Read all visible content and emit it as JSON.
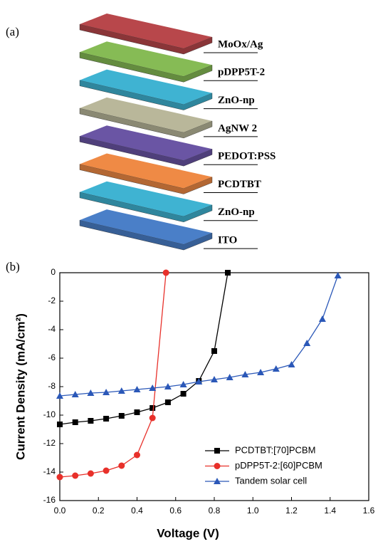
{
  "panel_a": {
    "label": "(a)",
    "layers": [
      {
        "label": "MoOx/Ag",
        "color": "#b8474b"
      },
      {
        "label": "pDPP5T-2",
        "color": "#86bb55"
      },
      {
        "label": "ZnO-np",
        "color": "#3fb3d2"
      },
      {
        "label": "AgNW 2",
        "color": "#b9b79a"
      },
      {
        "label": "PEDOT:PSS",
        "color": "#6a55a4"
      },
      {
        "label": "PCDTBT",
        "color": "#ef8a45"
      },
      {
        "label": "ZnO-np",
        "color": "#3fb3d2"
      },
      {
        "label": "ITO",
        "color": "#4a7fc8"
      }
    ]
  },
  "chart_data": {
    "type": "line",
    "panel_label": "(b)",
    "x_label": "Voltage (V)",
    "y_label": "Current Density (mA/cm²)",
    "xlim": [
      0,
      1.6
    ],
    "ylim": [
      -16,
      0
    ],
    "xticks": [
      {
        "value": 0,
        "label": "0.0"
      },
      0.2,
      0.4,
      0.6,
      0.8,
      {
        "value": 1,
        "label": "1.0"
      },
      1.2,
      1.4,
      1.6
    ],
    "yticks": [
      0,
      -2,
      -4,
      -6,
      -8,
      -10,
      -12,
      -14,
      -16
    ],
    "legend": "lower right",
    "series": [
      {
        "name": "PCDTBT:[70]PCBM",
        "color": "#000000",
        "marker": "square",
        "x": [
          0,
          0.08,
          0.16,
          0.24,
          0.32,
          0.4,
          0.48,
          0.56,
          0.64,
          0.72,
          0.8,
          0.87
        ],
        "values": [
          -10.65,
          -10.5,
          -10.4,
          -10.25,
          -10.05,
          -9.8,
          -9.5,
          -9.1,
          -8.5,
          -7.6,
          -5.5,
          0
        ]
      },
      {
        "name": "pDPP5T-2:[60]PCBM",
        "color": "#e8302a",
        "marker": "circle",
        "x": [
          0,
          0.08,
          0.16,
          0.24,
          0.32,
          0.4,
          0.48,
          0.55
        ],
        "values": [
          -14.35,
          -14.25,
          -14.1,
          -13.9,
          -13.55,
          -12.8,
          -10.2,
          0
        ]
      },
      {
        "name": "Tandem solar cell",
        "color": "#2b58b8",
        "marker": "triangle",
        "x": [
          0,
          0.08,
          0.16,
          0.24,
          0.32,
          0.4,
          0.48,
          0.56,
          0.64,
          0.72,
          0.8,
          0.88,
          0.96,
          1.04,
          1.12,
          1.2,
          1.28,
          1.36,
          1.44
        ],
        "values": [
          -8.65,
          -8.55,
          -8.45,
          -8.4,
          -8.3,
          -8.2,
          -8.1,
          -8.0,
          -7.85,
          -7.65,
          -7.5,
          -7.35,
          -7.15,
          -7.0,
          -6.75,
          -6.45,
          -4.95,
          -3.25,
          -0.2
        ]
      }
    ]
  }
}
